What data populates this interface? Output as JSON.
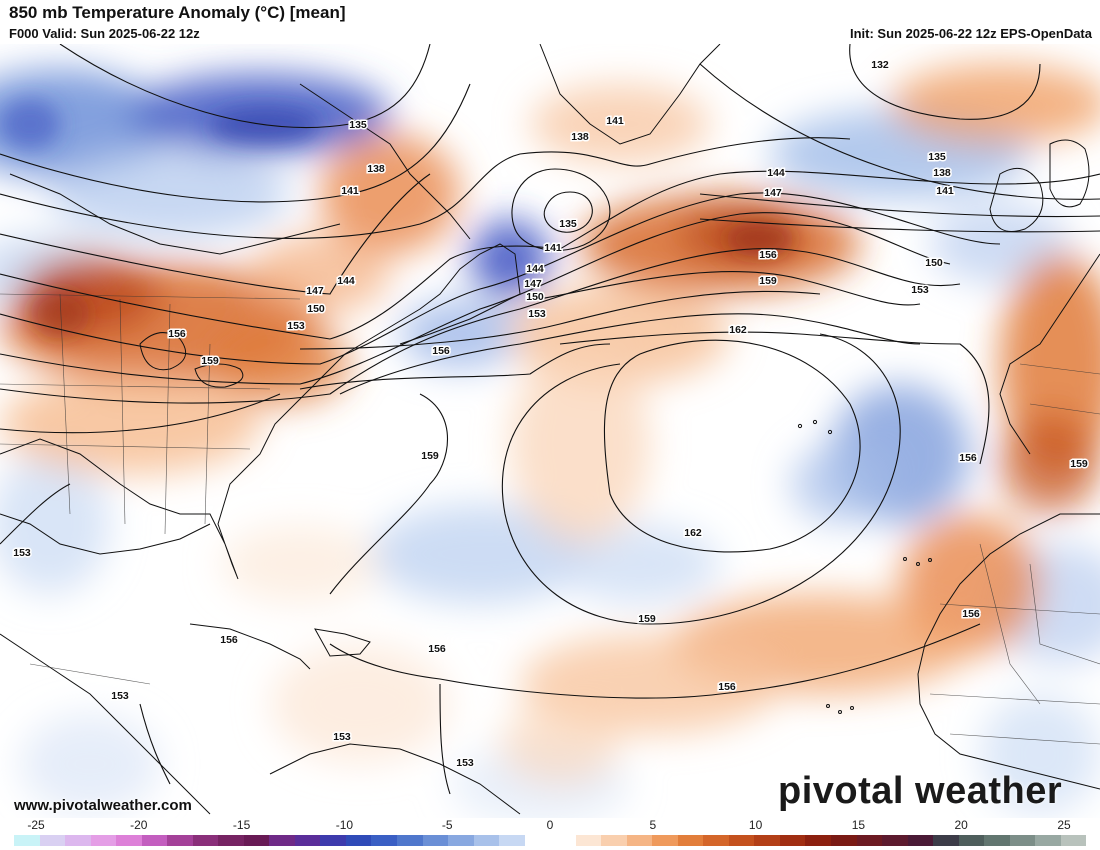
{
  "header": {
    "title": "850 mb Temperature Anomaly (°C) [mean]",
    "valid": "F000 Valid: Sun 2025-06-22 12z",
    "init": "Init: Sun 2025-06-22 12z EPS-OpenData"
  },
  "footer": {
    "website": "www.pivotalweather.com",
    "logo_text": "pivotal weather"
  },
  "contours": {
    "labels": [
      {
        "text": "132"
      },
      {
        "text": "135"
      },
      {
        "text": "135"
      },
      {
        "text": "135"
      },
      {
        "text": "138"
      },
      {
        "text": "138"
      },
      {
        "text": "138"
      },
      {
        "text": "141"
      },
      {
        "text": "141"
      },
      {
        "text": "141"
      },
      {
        "text": "141"
      },
      {
        "text": "144"
      },
      {
        "text": "144"
      },
      {
        "text": "144"
      },
      {
        "text": "147"
      },
      {
        "text": "147"
      },
      {
        "text": "147"
      },
      {
        "text": "150"
      },
      {
        "text": "150"
      },
      {
        "text": "150"
      },
      {
        "text": "153"
      },
      {
        "text": "153"
      },
      {
        "text": "153"
      },
      {
        "text": "153"
      },
      {
        "text": "153"
      },
      {
        "text": "153"
      },
      {
        "text": "153"
      },
      {
        "text": "156"
      },
      {
        "text": "156"
      },
      {
        "text": "156"
      },
      {
        "text": "156"
      },
      {
        "text": "156"
      },
      {
        "text": "156"
      },
      {
        "text": "156"
      },
      {
        "text": "156"
      },
      {
        "text": "159"
      },
      {
        "text": "159"
      },
      {
        "text": "159"
      },
      {
        "text": "159"
      },
      {
        "text": "159"
      },
      {
        "text": "162"
      },
      {
        "text": "162"
      }
    ]
  },
  "colorbar": {
    "tick_labels": [
      "-25",
      "-20",
      "-15",
      "-10",
      "-5",
      "0",
      "5",
      "10",
      "15",
      "20",
      "25"
    ],
    "colors": [
      "#c9f3f7",
      "#d9d0f2",
      "#dcb7ee",
      "#e49ee6",
      "#dd80d8",
      "#c35ebf",
      "#a44199",
      "#8a2f7a",
      "#762363",
      "#681a55",
      "#6f2a87",
      "#5a2e9a",
      "#3d3bad",
      "#2f4bb8",
      "#3a5fc4",
      "#4f77cc",
      "#6a8fd6",
      "#88a8e0",
      "#a8c1ea",
      "#c7d8f3",
      "#ffffff",
      "#ffffff",
      "#fce6d4",
      "#f9cfae",
      "#f5b585",
      "#ef9a5c",
      "#e27e3b",
      "#d4662a",
      "#c4511e",
      "#b33f17",
      "#a02e12",
      "#8c200f",
      "#7a1a14",
      "#6c1a22",
      "#5c1a2e",
      "#4a1a36",
      "#3c3c48",
      "#4e5e5c",
      "#627670",
      "#7c8e88",
      "#98a8a2",
      "#b8c2bc"
    ]
  }
}
